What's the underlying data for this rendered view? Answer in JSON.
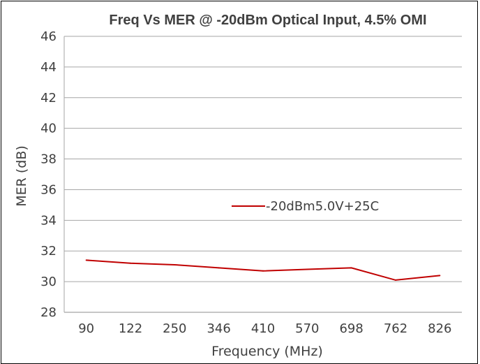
{
  "chart_data": {
    "type": "line",
    "title": "Freq Vs MER @ -20dBm Optical Input, 4.5% OMI",
    "xlabel": "Frequency (MHz)",
    "ylabel": "MER (dB)",
    "categories": [
      "90",
      "122",
      "250",
      "346",
      "410",
      "570",
      "698",
      "762",
      "826"
    ],
    "series": [
      {
        "name": "-20dBm5.0V+25C",
        "values": [
          31.4,
          31.2,
          31.1,
          30.9,
          30.7,
          30.8,
          30.9,
          30.1,
          30.4
        ],
        "color": "#C00000"
      }
    ],
    "ylim": [
      28,
      46
    ],
    "yticks": [
      28,
      30,
      32,
      34,
      36,
      38,
      40,
      42,
      44,
      46
    ],
    "grid": true,
    "legend_position": "inside-middle"
  }
}
